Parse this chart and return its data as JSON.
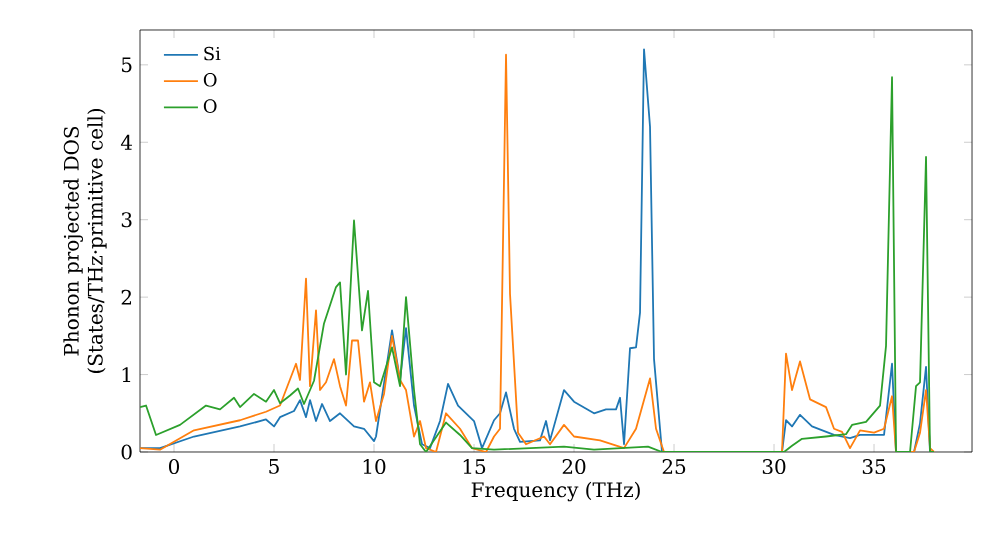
{
  "chart_data": {
    "type": "line",
    "xlabel": "Frequency (THz)",
    "ylabel": "Phonon projected DOS\n(States/THz·primitive cell)",
    "xlim": [
      -1.7,
      39.9
    ],
    "ylim": [
      0,
      5.45
    ],
    "xticks": [
      0,
      5,
      10,
      15,
      20,
      25,
      30,
      35
    ],
    "yticks": [
      0,
      1,
      2,
      3,
      4,
      5
    ],
    "legend": "top left",
    "series": [
      {
        "name": "Si",
        "color": "#1f77b4",
        "x": [
          -1.7,
          -0.7,
          1.0,
          3.3,
          4.6,
          5.0,
          5.3,
          6.0,
          6.3,
          6.6,
          6.8,
          7.1,
          7.4,
          7.8,
          8.3,
          9.0,
          9.5,
          10.0,
          10.1,
          10.9,
          11.3,
          11.6,
          12.0,
          12.4,
          12.8,
          13.3,
          13.7,
          14.2,
          15.0,
          15.4,
          16.0,
          16.3,
          16.6,
          17.0,
          17.3,
          18.3,
          18.6,
          18.8,
          19.5,
          20.0,
          21.0,
          21.6,
          22.1,
          22.3,
          22.5,
          22.8,
          23.1,
          23.3,
          23.5,
          23.8,
          24.0,
          24.4,
          30.4,
          30.6,
          30.9,
          31.3,
          31.9,
          33.0,
          33.8,
          34.3,
          35.5,
          35.9,
          36.1,
          37.0,
          37.3,
          37.6,
          37.8,
          38.0
        ],
        "values": [
          0.05,
          0.05,
          0.2,
          0.33,
          0.42,
          0.33,
          0.45,
          0.53,
          0.67,
          0.45,
          0.67,
          0.4,
          0.62,
          0.4,
          0.5,
          0.33,
          0.3,
          0.14,
          0.2,
          1.57,
          0.93,
          1.6,
          0.6,
          0.1,
          0.05,
          0.4,
          0.88,
          0.6,
          0.4,
          0.05,
          0.41,
          0.5,
          0.77,
          0.3,
          0.13,
          0.15,
          0.4,
          0.15,
          0.8,
          0.65,
          0.5,
          0.55,
          0.55,
          0.7,
          0.1,
          1.34,
          1.35,
          1.8,
          5.2,
          4.2,
          1.2,
          0,
          0,
          0.41,
          0.33,
          0.48,
          0.33,
          0.22,
          0.18,
          0.22,
          0.22,
          1.14,
          0,
          0,
          0.37,
          1.1,
          0,
          0
        ]
      },
      {
        "name": "O",
        "color": "#ff7f0e",
        "x": [
          -1.7,
          -0.7,
          1.0,
          3.3,
          4.6,
          5.3,
          6.1,
          6.3,
          6.6,
          6.8,
          7.1,
          7.3,
          7.6,
          8.0,
          8.3,
          8.6,
          8.9,
          9.2,
          9.5,
          9.8,
          10.1,
          10.5,
          10.9,
          11.3,
          11.6,
          12.0,
          12.3,
          12.6,
          13.1,
          13.6,
          14.3,
          14.9,
          15.6,
          16.0,
          16.3,
          16.6,
          16.8,
          17.2,
          17.6,
          18.5,
          18.8,
          19.5,
          20.0,
          21.3,
          22.5,
          23.1,
          23.8,
          24.1,
          24.5,
          30.4,
          30.6,
          30.9,
          31.3,
          31.8,
          32.6,
          33.0,
          33.4,
          33.8,
          34.3,
          35.0,
          35.5,
          35.9,
          36.1,
          37.0,
          37.3,
          37.6,
          37.8,
          38.0
        ],
        "values": [
          0.05,
          0.03,
          0.28,
          0.41,
          0.52,
          0.6,
          1.14,
          0.93,
          2.24,
          0.85,
          1.83,
          0.8,
          0.9,
          1.2,
          0.85,
          0.6,
          1.44,
          1.44,
          0.65,
          0.9,
          0.4,
          0.75,
          1.5,
          0.93,
          0.8,
          0.2,
          0.4,
          0.05,
          0,
          0.5,
          0.3,
          0.05,
          0,
          0.2,
          0.3,
          5.13,
          2.04,
          0.25,
          0.1,
          0.2,
          0.1,
          0.35,
          0.2,
          0.15,
          0.05,
          0.3,
          0.95,
          0.3,
          0,
          0,
          1.27,
          0.8,
          1.17,
          0.68,
          0.58,
          0.3,
          0.26,
          0.05,
          0.28,
          0.25,
          0.3,
          0.72,
          0,
          0,
          0.25,
          0.8,
          0.05,
          0
        ]
      },
      {
        "name": "O",
        "color": "#2ca02c",
        "x": [
          -1.7,
          -1.4,
          -0.9,
          0.3,
          1.6,
          2.3,
          3.0,
          3.3,
          4.0,
          4.6,
          5.0,
          5.3,
          5.8,
          6.2,
          6.5,
          7.0,
          7.5,
          8.1,
          8.3,
          8.6,
          9.0,
          9.4,
          9.7,
          10.0,
          10.3,
          10.9,
          11.3,
          11.6,
          12.0,
          12.3,
          12.6,
          13.6,
          14.3,
          14.9,
          16.0,
          19.5,
          21.0,
          23.7,
          24.4,
          30.4,
          30.5,
          30.9,
          31.4,
          32.6,
          33.6,
          33.9,
          34.6,
          35.3,
          35.6,
          35.9,
          36.1,
          36.8,
          37.1,
          37.3,
          37.6,
          37.8,
          38.0
        ],
        "values": [
          0.58,
          0.6,
          0.22,
          0.35,
          0.6,
          0.55,
          0.7,
          0.58,
          0.75,
          0.65,
          0.8,
          0.63,
          0.73,
          0.82,
          0.62,
          0.92,
          1.66,
          2.13,
          2.19,
          1.0,
          2.99,
          1.57,
          2.08,
          0.9,
          0.85,
          1.35,
          0.85,
          2.0,
          0.8,
          0.1,
          0,
          0.38,
          0.22,
          0.05,
          0.03,
          0.07,
          0.03,
          0.07,
          0,
          0,
          0,
          0.08,
          0.17,
          0.2,
          0.23,
          0.35,
          0.39,
          0.6,
          1.37,
          4.84,
          0,
          0,
          0.85,
          0.9,
          3.81,
          0,
          0
        ]
      }
    ]
  }
}
